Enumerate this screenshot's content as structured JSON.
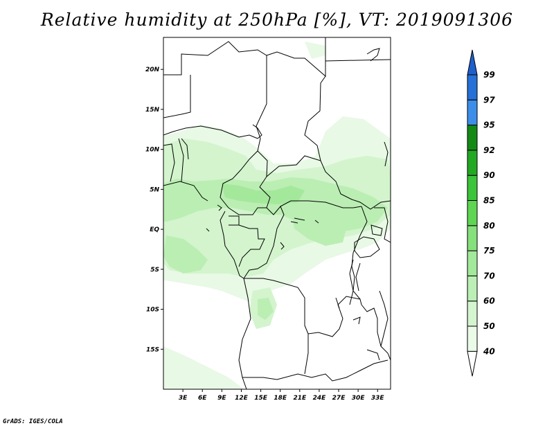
{
  "title": "Relative humidity at 250hPa [%], VT: 2019091306",
  "credit": "GrADS: IGES/COLA",
  "map": {
    "lat_range": [
      -20,
      24
    ],
    "lon_range": [
      0,
      35
    ],
    "lat_ticks": [
      {
        "value": 20,
        "label": "20N"
      },
      {
        "value": 15,
        "label": "15N"
      },
      {
        "value": 10,
        "label": "10N"
      },
      {
        "value": 5,
        "label": "5N"
      },
      {
        "value": 0,
        "label": "EQ"
      },
      {
        "value": -5,
        "label": "5S"
      },
      {
        "value": -10,
        "label": "10S"
      },
      {
        "value": -15,
        "label": "15S"
      }
    ],
    "lon_ticks": [
      {
        "value": 3,
        "label": "3E"
      },
      {
        "value": 6,
        "label": "6E"
      },
      {
        "value": 9,
        "label": "9E"
      },
      {
        "value": 12,
        "label": "12E"
      },
      {
        "value": 15,
        "label": "15E"
      },
      {
        "value": 18,
        "label": "18E"
      },
      {
        "value": 21,
        "label": "21E"
      },
      {
        "value": 24,
        "label": "24E"
      },
      {
        "value": 27,
        "label": "27E"
      },
      {
        "value": 30,
        "label": "30E"
      },
      {
        "value": 33,
        "label": "33E"
      }
    ]
  },
  "colorbar": {
    "bins": [
      {
        "low": 40,
        "high": 50,
        "color": "#eafbe8"
      },
      {
        "low": 50,
        "high": 60,
        "color": "#d4f5cf"
      },
      {
        "low": 60,
        "high": 70,
        "color": "#bcefb5"
      },
      {
        "low": 70,
        "high": 75,
        "color": "#a3e99b"
      },
      {
        "low": 75,
        "high": 80,
        "color": "#86e07c"
      },
      {
        "low": 80,
        "high": 85,
        "color": "#5fd653"
      },
      {
        "low": 85,
        "high": 90,
        "color": "#3cc43a"
      },
      {
        "low": 90,
        "high": 92,
        "color": "#23a823"
      },
      {
        "low": 92,
        "high": 95,
        "color": "#148a14"
      },
      {
        "low": 95,
        "high": 97,
        "color": "#3d8ee8"
      },
      {
        "low": 97,
        "high": 99,
        "color": "#2670d8"
      },
      {
        "low": 99,
        "high": 100,
        "color": "#1e5fcc"
      }
    ],
    "labels": [
      "40",
      "50",
      "60",
      "70",
      "75",
      "80",
      "85",
      "90",
      "92",
      "95",
      "97",
      "99"
    ]
  }
}
